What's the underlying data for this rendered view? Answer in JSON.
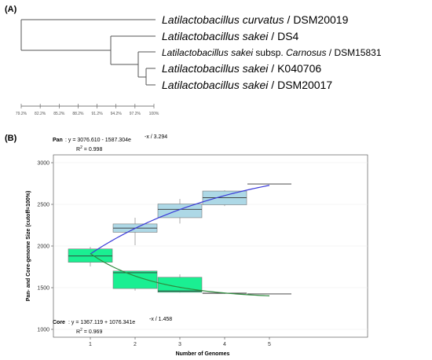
{
  "panel_a": {
    "label": "(A)",
    "taxa": [
      {
        "genus": "Latilactobacillus",
        "species": "curvatus",
        "rest": " / DSM20019"
      },
      {
        "genus": "Latilactobacillus",
        "species": "sakei",
        "rest": " / DS4"
      },
      {
        "genus": "Latilactobacillus",
        "species": "sakei",
        "rest_plain": " subsp. ",
        "subsp_italic": "Carnosus",
        "rest": " / DSM15831"
      },
      {
        "genus": "Latilactobacillus",
        "species": "sakei",
        "rest": " / K040706"
      },
      {
        "genus": "Latilactobacillus",
        "species": "sakei",
        "rest": " / DSM20017"
      }
    ],
    "similarity_ticks": [
      "79.2%",
      "82.2%",
      "85.2%",
      "88.2%",
      "91.2%",
      "94.2%",
      "97.2%",
      "100%"
    ]
  },
  "panel_b": {
    "label": "(B)",
    "pan_label": "Pan",
    "pan_formula": ": y = 3076.610  - 1587.304e",
    "pan_exponent": "-x / 3.294",
    "pan_r2": "R",
    "pan_r2_value": " = 0.998",
    "core_label": "Core",
    "core_formula": ": y = 1367.119  + 1076.341e",
    "core_exponent": "-x / 1.458",
    "core_r2": "R",
    "core_r2_value": " = 0.969",
    "sup2": "2"
  },
  "chart_data": [
    {
      "type": "dendrogram",
      "title": "",
      "leaves": [
        "Latilactobacillus curvatus / DSM20019",
        "Latilactobacillus sakei / DS4",
        "Latilactobacillus sakei subsp. Carnosus / DSM15831",
        "Latilactobacillus sakei / K040706",
        "Latilactobacillus sakei / DSM20017"
      ],
      "axis_ticks": [
        "79.2%",
        "82.2%",
        "85.2%",
        "88.2%",
        "91.2%",
        "94.2%",
        "97.2%",
        "100%"
      ],
      "merge_similarity": [
        {
          "join": [
            "K040706",
            "DSM20017"
          ],
          "similarity": 99.8
        },
        {
          "join": [
            "DSM15831",
            "K040706+DSM20017"
          ],
          "similarity": 99.0
        },
        {
          "join": [
            "DS4",
            "DSM15831+K040706+DSM20017"
          ],
          "similarity": 93.6
        },
        {
          "join": [
            "DSM20019",
            "all sakei"
          ],
          "similarity": 79.2
        }
      ]
    },
    {
      "type": "box",
      "xlabel": "Number of Genomes",
      "ylabel": "Pan- and Core-genome Size (cutoff=100%)",
      "categories": [
        1,
        2,
        3,
        4,
        5
      ],
      "ylim": [
        1000,
        3000
      ],
      "yticks": [
        1000,
        1500,
        2000,
        2500,
        3000
      ],
      "series": [
        {
          "name": "Pan",
          "color": "#add8e6",
          "boxes": [
            {
              "x": 1,
              "min": 1900,
              "q1": 1900,
              "median": 1900,
              "q3": 1900,
              "max": 1900
            },
            {
              "x": 2,
              "min": 2010,
              "q1": 2165,
              "median": 2215,
              "q3": 2265,
              "max": 2340
            },
            {
              "x": 3,
              "min": 2270,
              "q1": 2340,
              "median": 2440,
              "q3": 2505,
              "max": 2565
            },
            {
              "x": 4,
              "min": 2480,
              "q1": 2495,
              "median": 2580,
              "q3": 2660,
              "max": 2670
            },
            {
              "x": 5,
              "min": 2745,
              "q1": 2745,
              "median": 2745,
              "q3": 2745,
              "max": 2745
            }
          ],
          "fit": "y = 3076.610 - 1587.304e^(-x/3.294)",
          "r2": 0.998
        },
        {
          "name": "Core",
          "color": "#1aef92",
          "boxes": [
            {
              "x": 1,
              "min": 1755,
              "q1": 1805,
              "median": 1880,
              "q3": 1965,
              "max": 1990
            },
            {
              "x": 2,
              "min": 1465,
              "q1": 1490,
              "median": 1680,
              "q3": 1700,
              "max": 1700
            },
            {
              "x": 3,
              "min": 1440,
              "q1": 1445,
              "median": 1460,
              "q3": 1625,
              "max": 1660
            },
            {
              "x": 4,
              "min": 1425,
              "q1": 1430,
              "median": 1435,
              "q3": 1435,
              "max": 1440
            },
            {
              "x": 5,
              "min": 1425,
              "q1": 1425,
              "median": 1425,
              "q3": 1425,
              "max": 1425
            }
          ],
          "fit": "y = 1367.119 + 1076.341e^(-x/1.458)",
          "r2": 0.969
        }
      ],
      "fit_curves": [
        {
          "name": "Pan",
          "color": "#3b3bd9",
          "a": 3076.61,
          "b": -1587.304,
          "tau": 3.294
        },
        {
          "name": "Core",
          "color": "#2e8b3e",
          "a": 1367.119,
          "b": 1076.341,
          "tau": 1.458
        }
      ]
    }
  ]
}
